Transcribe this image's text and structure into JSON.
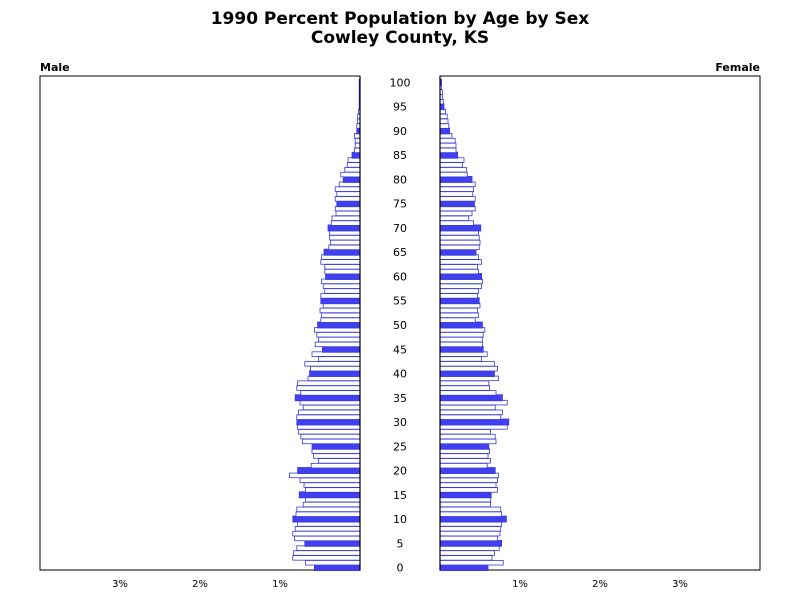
{
  "chart_data": {
    "type": "bar",
    "orientation": "horizontal-mirrored",
    "title": "1990 Percent Population by Age by Sex",
    "subtitle": "Cowley County, KS",
    "left_label": "Male",
    "right_label": "Female",
    "xlim": [
      0,
      4
    ],
    "x_ticks": [
      "3%",
      "2%",
      "1%"
    ],
    "x_tick_values": [
      3,
      2,
      1
    ],
    "y_ticks": [
      "0",
      "5",
      "10",
      "15",
      "20",
      "25",
      "30",
      "35",
      "40",
      "45",
      "50",
      "55",
      "60",
      "65",
      "70",
      "75",
      "80",
      "85",
      "90",
      "95",
      "100"
    ],
    "age_min": 0,
    "age_max": 100,
    "highlight_every": 5,
    "colors": {
      "bar_fill": "#ffffff",
      "bar_stroke": "#3a3ad8",
      "highlight": "#4040f0",
      "axis": "#000000"
    },
    "male": [
      0.57,
      0.68,
      0.84,
      0.83,
      0.79,
      0.69,
      0.82,
      0.84,
      0.81,
      0.78,
      0.84,
      0.8,
      0.79,
      0.71,
      0.68,
      0.76,
      0.68,
      0.7,
      0.75,
      0.88,
      0.78,
      0.61,
      0.52,
      0.58,
      0.6,
      0.6,
      0.72,
      0.74,
      0.77,
      0.78,
      0.79,
      0.79,
      0.77,
      0.71,
      0.75,
      0.81,
      0.74,
      0.79,
      0.78,
      0.65,
      0.63,
      0.62,
      0.69,
      0.52,
      0.6,
      0.47,
      0.56,
      0.52,
      0.54,
      0.57,
      0.53,
      0.49,
      0.48,
      0.5,
      0.46,
      0.49,
      0.49,
      0.44,
      0.46,
      0.48,
      0.43,
      0.44,
      0.44,
      0.49,
      0.48,
      0.45,
      0.39,
      0.37,
      0.38,
      0.38,
      0.4,
      0.36,
      0.35,
      0.3,
      0.31,
      0.29,
      0.31,
      0.29,
      0.31,
      0.26,
      0.21,
      0.24,
      0.19,
      0.16,
      0.15,
      0.1,
      0.07,
      0.06,
      0.06,
      0.07,
      0.04,
      0.04,
      0.03,
      0.03,
      0.02,
      0.01,
      0.01,
      0.01,
      0.01,
      0.01,
      0.01
    ],
    "female": [
      0.6,
      0.79,
      0.65,
      0.68,
      0.74,
      0.77,
      0.72,
      0.75,
      0.76,
      0.77,
      0.83,
      0.77,
      0.76,
      0.63,
      0.63,
      0.64,
      0.72,
      0.7,
      0.72,
      0.73,
      0.69,
      0.59,
      0.63,
      0.6,
      0.62,
      0.61,
      0.7,
      0.69,
      0.63,
      0.84,
      0.86,
      0.76,
      0.78,
      0.69,
      0.84,
      0.78,
      0.7,
      0.62,
      0.61,
      0.73,
      0.68,
      0.72,
      0.68,
      0.52,
      0.59,
      0.54,
      0.53,
      0.53,
      0.54,
      0.56,
      0.53,
      0.44,
      0.48,
      0.47,
      0.5,
      0.49,
      0.47,
      0.48,
      0.52,
      0.53,
      0.52,
      0.48,
      0.47,
      0.52,
      0.48,
      0.45,
      0.49,
      0.5,
      0.49,
      0.48,
      0.51,
      0.42,
      0.36,
      0.4,
      0.44,
      0.43,
      0.44,
      0.41,
      0.42,
      0.44,
      0.4,
      0.34,
      0.33,
      0.28,
      0.3,
      0.22,
      0.2,
      0.2,
      0.19,
      0.15,
      0.12,
      0.11,
      0.1,
      0.09,
      0.07,
      0.05,
      0.04,
      0.03,
      0.03,
      0.02,
      0.02
    ]
  }
}
